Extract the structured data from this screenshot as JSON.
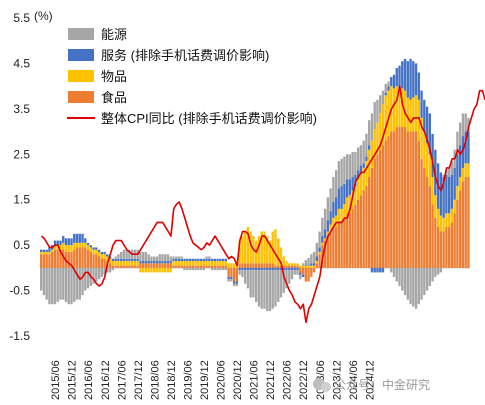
{
  "chart_data": {
    "type": "bar",
    "unit_label": "(%)",
    "ylim": [
      -1.5,
      5.5
    ],
    "yticks": [
      "5.5",
      "4.5",
      "3.5",
      "2.5",
      "1.5",
      "0.5",
      "-0.5",
      "-1.5"
    ],
    "ytick_values": [
      5.5,
      4.5,
      3.5,
      2.5,
      1.5,
      0.5,
      -0.5,
      -1.5
    ],
    "xticks": [
      "2015/06",
      "2015/12",
      "2016/06",
      "2016/12",
      "2017/06",
      "2017/12",
      "2018/06",
      "2018/12",
      "2019/06",
      "2019/12",
      "2020/06",
      "2020/12",
      "2021/06",
      "2021/12",
      "2022/06",
      "2022/12",
      "2023/06",
      "2023/12",
      "2024/06",
      "2024/12"
    ],
    "start_month": "2015/01",
    "legend": [
      {
        "label": "能源",
        "color": "#a6a6a6",
        "kind": "box"
      },
      {
        "label": "服务 (排除手机话费调价影响)",
        "color": "#4472c4",
        "kind": "box"
      },
      {
        "label": "物品",
        "color": "#ffc000",
        "kind": "box"
      },
      {
        "label": "食品",
        "color": "#ed7d31",
        "kind": "box"
      },
      {
        "label": "整体CPI同比 (排除手机话费调价影响)",
        "color": "#e00000",
        "kind": "line"
      }
    ],
    "series": [
      {
        "name": "食品",
        "color": "#ed7d31",
        "values": [
          0.3,
          0.3,
          0.3,
          0.3,
          0.35,
          0.4,
          0.4,
          0.4,
          0.4,
          0.35,
          0.35,
          0.35,
          0.4,
          0.45,
          0.45,
          0.45,
          0.45,
          0.4,
          0.35,
          0.3,
          0.3,
          0.25,
          0.2,
          0.2,
          0.15,
          0.1,
          0.05,
          0.05,
          0.05,
          0.05,
          0.05,
          0.05,
          0.05,
          0.05,
          0.05,
          0.05,
          0.1,
          0.1,
          0.1,
          0.1,
          0.1,
          0.1,
          0.1,
          0.1,
          0.1,
          0.1,
          0.1,
          0.1,
          0.05,
          0.05,
          0.05,
          0.05,
          0.05,
          0.05,
          0.05,
          0.05,
          0.05,
          0.05,
          0.05,
          0.05,
          0.05,
          0.05,
          0.05,
          0.05,
          0.05,
          0.05,
          0.05,
          0.05,
          -0.2,
          -0.2,
          -0.3,
          -0.3,
          0.1,
          0.1,
          0.1,
          0.1,
          0.1,
          0.1,
          0.1,
          0.1,
          0.1,
          0.1,
          0.1,
          0.1,
          0.1,
          0.05,
          0.05,
          0.05,
          0.05,
          0.05,
          0.05,
          0.05,
          0.05,
          0.05,
          -0.1,
          -0.15,
          -0.3,
          -0.3,
          -0.2,
          -0.1,
          0.1,
          0.3,
          0.5,
          0.6,
          0.7,
          0.8,
          0.9,
          0.9,
          1.0,
          1.0,
          1.1,
          1.2,
          1.2,
          1.3,
          1.4,
          1.5,
          1.6,
          1.7,
          1.8,
          2.0,
          2.2,
          2.4,
          2.5,
          2.6,
          2.7,
          2.8,
          2.9,
          3.0,
          3.0,
          3.1,
          3.1,
          3.1,
          3.1,
          3.0,
          3.0,
          3.0,
          3.0,
          2.8,
          2.4,
          2.2,
          2.0,
          1.8,
          1.4,
          1.1,
          0.9,
          0.8,
          0.8,
          0.9,
          0.9,
          1.0,
          1.2,
          1.5,
          1.7,
          1.9,
          2.0,
          2.0
        ]
      },
      {
        "name": "物品",
        "color": "#ffc000",
        "values": [
          0.05,
          0.05,
          0.05,
          0.05,
          0.05,
          0.1,
          0.1,
          0.1,
          0.15,
          0.15,
          0.15,
          0.15,
          0.15,
          0.1,
          0.1,
          0.1,
          0.1,
          0.1,
          0.1,
          0.1,
          0.1,
          0.1,
          0.1,
          0.1,
          0.1,
          0.1,
          0.1,
          0.1,
          0.1,
          0.1,
          0.1,
          0.1,
          0.1,
          0.1,
          0.1,
          0.1,
          -0.1,
          -0.1,
          -0.1,
          -0.1,
          -0.1,
          -0.1,
          -0.1,
          -0.1,
          -0.1,
          -0.1,
          -0.1,
          -0.1,
          0.1,
          0.1,
          0.1,
          0.1,
          0.1,
          0.1,
          0.1,
          0.1,
          0.1,
          0.1,
          0.1,
          0.1,
          0.1,
          0.1,
          0.1,
          0.1,
          0.1,
          0.1,
          0.1,
          0.1,
          0.1,
          0.1,
          0.1,
          0.1,
          0.5,
          0.6,
          0.7,
          0.8,
          0.7,
          0.6,
          0.5,
          0.6,
          0.7,
          0.7,
          0.6,
          0.5,
          0.7,
          0.8,
          0.6,
          0.4,
          0.2,
          0.1,
          0.05,
          0.05,
          0.05,
          0.05,
          0.05,
          0.05,
          0.05,
          0.05,
          0.05,
          0.05,
          0.05,
          0.05,
          0.05,
          0.05,
          0.1,
          0.15,
          0.2,
          0.25,
          0.3,
          0.3,
          0.3,
          0.35,
          0.4,
          0.4,
          0.4,
          0.45,
          0.5,
          0.5,
          0.55,
          0.6,
          0.6,
          0.65,
          0.7,
          0.8,
          0.9,
          1.0,
          1.0,
          1.0,
          0.95,
          0.9,
          0.85,
          0.85,
          0.8,
          0.75,
          0.7,
          0.75,
          0.8,
          0.9,
          0.9,
          0.8,
          0.75,
          0.7,
          0.6,
          0.5,
          0.4,
          0.35,
          0.3,
          0.3,
          0.3,
          0.3,
          0.3,
          0.3,
          0.3,
          0.3,
          0.3,
          0.3
        ]
      },
      {
        "name": "服务",
        "color": "#4472c4",
        "values": [
          0.05,
          0.05,
          0.05,
          0.1,
          0.1,
          0.1,
          0.1,
          0.1,
          0.15,
          0.15,
          0.15,
          0.15,
          0.2,
          0.2,
          0.2,
          0.2,
          0.1,
          0.05,
          0.05,
          0.05,
          0.05,
          0.05,
          0.05,
          0.05,
          0.05,
          0.05,
          0.05,
          0.05,
          0.05,
          0.05,
          0.05,
          0.05,
          0.05,
          0.05,
          0.05,
          0.05,
          0.05,
          0.05,
          0.05,
          0.05,
          0.05,
          0.05,
          0.05,
          0.05,
          0.05,
          0.05,
          0.05,
          0.05,
          0.05,
          0.05,
          0.05,
          0.05,
          0.05,
          0.05,
          0.05,
          0.05,
          0.05,
          0.05,
          0.05,
          0.05,
          0.05,
          0.05,
          0.05,
          0.05,
          0.05,
          0.05,
          0.05,
          0.05,
          -0.05,
          -0.05,
          -0.05,
          -0.05,
          -0.05,
          -0.05,
          -0.05,
          -0.05,
          -0.05,
          -0.05,
          -0.05,
          -0.05,
          -0.05,
          -0.05,
          -0.05,
          -0.05,
          -0.05,
          -0.05,
          -0.05,
          -0.05,
          -0.05,
          -0.05,
          -0.05,
          -0.05,
          -0.05,
          -0.05,
          -0.05,
          -0.05,
          0.02,
          0.02,
          0.05,
          0.05,
          0.1,
          0.1,
          0.15,
          0.2,
          0.25,
          0.3,
          0.35,
          0.4,
          0.45,
          0.5,
          0.45,
          0.4,
          0.35,
          0.3,
          0.25,
          0.2,
          0.15,
          0.1,
          0.1,
          0.1,
          -0.1,
          -0.1,
          -0.1,
          -0.1,
          -0.1,
          0.05,
          0.1,
          0.2,
          0.3,
          0.4,
          0.5,
          0.6,
          0.7,
          0.8,
          0.9,
          0.8,
          0.7,
          0.6,
          0.6,
          0.7,
          0.8,
          0.9,
          0.95,
          1.0,
          1.0,
          0.95,
          0.9,
          0.85,
          0.8,
          0.75,
          0.7,
          0.7,
          0.7,
          0.7,
          0.7,
          0.7,
          0.7,
          0.7,
          0.65,
          0.6
        ]
      },
      {
        "name": "能源",
        "color": "#a6a6a6",
        "values": [
          -0.5,
          -0.6,
          -0.7,
          -0.8,
          -0.8,
          -0.8,
          -0.75,
          -0.7,
          -0.7,
          -0.75,
          -0.8,
          -0.8,
          -0.75,
          -0.7,
          -0.7,
          -0.6,
          -0.5,
          -0.45,
          -0.4,
          -0.35,
          -0.3,
          -0.25,
          -0.2,
          -0.15,
          -0.1,
          -0.1,
          -0.05,
          0.05,
          0.1,
          0.15,
          0.2,
          0.2,
          0.2,
          0.2,
          0.2,
          0.2,
          0.2,
          0.2,
          0.2,
          0.15,
          0.1,
          0.1,
          0.1,
          0.15,
          0.15,
          0.15,
          0.15,
          0.1,
          0.05,
          0.05,
          0.05,
          0.05,
          -0.05,
          -0.05,
          -0.05,
          -0.05,
          -0.05,
          -0.05,
          -0.05,
          -0.05,
          0.05,
          0.05,
          -0.05,
          -0.05,
          -0.05,
          -0.05,
          -0.05,
          -0.05,
          -0.05,
          -0.05,
          -0.05,
          -0.05,
          -0.1,
          -0.15,
          -0.3,
          -0.4,
          -0.6,
          -0.6,
          -0.7,
          -0.8,
          -0.85,
          -0.85,
          -0.9,
          -0.9,
          -0.85,
          -0.8,
          -0.7,
          -0.6,
          -0.5,
          -0.4,
          -0.3,
          -0.2,
          -0.1,
          -0.1,
          -0.1,
          0.05,
          0.1,
          0.15,
          0.2,
          0.25,
          0.3,
          0.35,
          0.4,
          0.45,
          0.5,
          0.5,
          0.55,
          0.6,
          0.6,
          0.6,
          0.6,
          0.55,
          0.55,
          0.55,
          0.5,
          0.5,
          0.45,
          0.5,
          0.5,
          0.55,
          0.6,
          0.6,
          0.5,
          0.4,
          0.3,
          0.2,
          0.1,
          -0.1,
          -0.2,
          -0.3,
          -0.4,
          -0.5,
          -0.6,
          -0.7,
          -0.8,
          -0.85,
          -0.9,
          -0.8,
          -0.7,
          -0.6,
          -0.5,
          -0.4,
          -0.3,
          -0.2,
          -0.15,
          -0.1,
          0.05,
          0.1,
          0.2,
          0.3,
          0.4,
          0.5,
          0.5,
          0.5,
          0.4,
          0.3,
          0.2,
          0.1,
          0.1,
          0.1
        ]
      },
      {
        "name": "整体CPI同比 (排除手机话费调价影响)",
        "color": "#e00000",
        "type": "line",
        "values": [
          0.7,
          0.65,
          0.55,
          0.45,
          0.45,
          0.5,
          0.5,
          0.35,
          0.25,
          0.15,
          0.1,
          0.05,
          -0.05,
          -0.15,
          -0.25,
          -0.2,
          -0.1,
          -0.1,
          -0.2,
          -0.25,
          -0.35,
          -0.4,
          -0.35,
          -0.2,
          0.1,
          0.3,
          0.5,
          0.6,
          0.6,
          0.6,
          0.5,
          0.4,
          0.35,
          0.3,
          0.3,
          0.3,
          0.4,
          0.5,
          0.6,
          0.7,
          0.8,
          0.9,
          1.0,
          1.0,
          1.0,
          0.9,
          0.8,
          0.7,
          1.3,
          1.4,
          1.45,
          1.3,
          1.1,
          0.9,
          0.7,
          0.55,
          0.5,
          0.45,
          0.4,
          0.45,
          0.55,
          0.5,
          0.6,
          0.7,
          0.6,
          0.5,
          0.4,
          0.3,
          0.2,
          0.25,
          0.2,
          0.05,
          0.6,
          0.8,
          0.8,
          0.75,
          0.5,
          0.4,
          0.35,
          0.5,
          0.7,
          0.7,
          0.6,
          0.5,
          0.4,
          0.3,
          0.2,
          0.1,
          -0.2,
          -0.35,
          -0.5,
          -0.6,
          -0.75,
          -0.8,
          -0.9,
          -0.8,
          -1.2,
          -0.9,
          -0.8,
          -0.6,
          -0.4,
          -0.2,
          0.2,
          0.5,
          0.7,
          0.8,
          0.9,
          1.0,
          1.0,
          1.0,
          1.1,
          1.1,
          1.3,
          1.6,
          1.9,
          2.0,
          2.1,
          2.1,
          2.2,
          2.3,
          2.4,
          2.5,
          2.6,
          2.7,
          2.9,
          3.1,
          3.3,
          3.5,
          3.6,
          3.7,
          4.0,
          3.6,
          3.4,
          3.3,
          3.2,
          3.3,
          3.3,
          3.3,
          3.1,
          3.0,
          2.8,
          2.6,
          2.3,
          2.0,
          1.8,
          1.7,
          1.9,
          2.2,
          2.2,
          2.4,
          2.4,
          2.6,
          2.5,
          2.6,
          2.8,
          3.1,
          3.3,
          3.5,
          3.6,
          3.9,
          3.9,
          3.7
        ]
      }
    ]
  },
  "watermark": "公众号：中金研究"
}
